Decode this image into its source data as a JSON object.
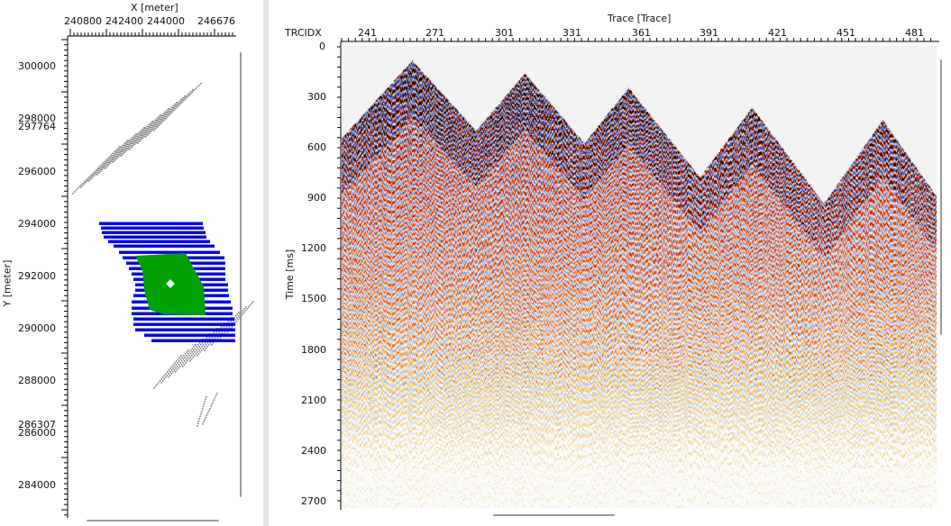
{
  "basemap": {
    "x_axis_label": "X [meter]",
    "x_ticks": [
      "240800",
      "242400",
      "244000",
      "246676"
    ],
    "y_axis_label": "Y [meter]",
    "y_ticks": [
      "300000",
      "298000",
      "297764",
      "296000",
      "294000",
      "292000",
      "290000",
      "288000",
      "286307",
      "286000",
      "284000"
    ],
    "colors": {
      "survey_outline": "#808080",
      "selected_lines": "#0000ee",
      "selected_area": "#00a000",
      "location_marker": "#e0f0e0"
    }
  },
  "section": {
    "x_axis_label": "Trace [Trace]",
    "x_axis_key": "TRCIDX",
    "trace_ticks": [
      "241",
      "271",
      "301",
      "331",
      "361",
      "391",
      "421",
      "451",
      "481"
    ],
    "y_axis_label": "Time [ms]",
    "time_ticks": [
      "0",
      "300",
      "600",
      "900",
      "1200",
      "1500",
      "1800",
      "2100",
      "2400",
      "2700"
    ],
    "colors": {
      "positive": "#000000",
      "strong": "#b01010",
      "mid": "#e05020",
      "weak": "#f0b020",
      "negative": "#3040a0",
      "background": "#f2f2f2"
    }
  }
}
